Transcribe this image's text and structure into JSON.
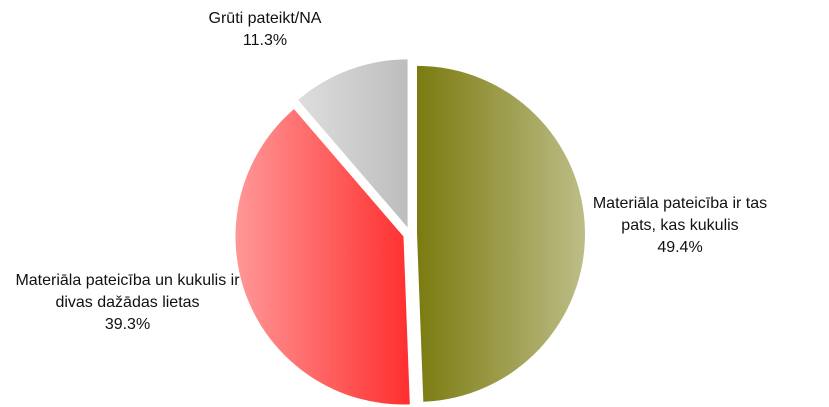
{
  "chart_data": {
    "type": "pie",
    "categories": [
      "Materiāla pateicība ir tas pats, kas kukulis",
      "Materiāla pateicība un kukulis ir divas dažādas lietas",
      "Grūti pateikt/NA"
    ],
    "values": [
      49.4,
      39.3,
      11.3
    ],
    "value_labels": [
      "49.4%",
      "39.3%",
      "11.3%"
    ],
    "colors": [
      "#7b7b10",
      "#ff2f2f",
      "#bdbdbd"
    ]
  }
}
